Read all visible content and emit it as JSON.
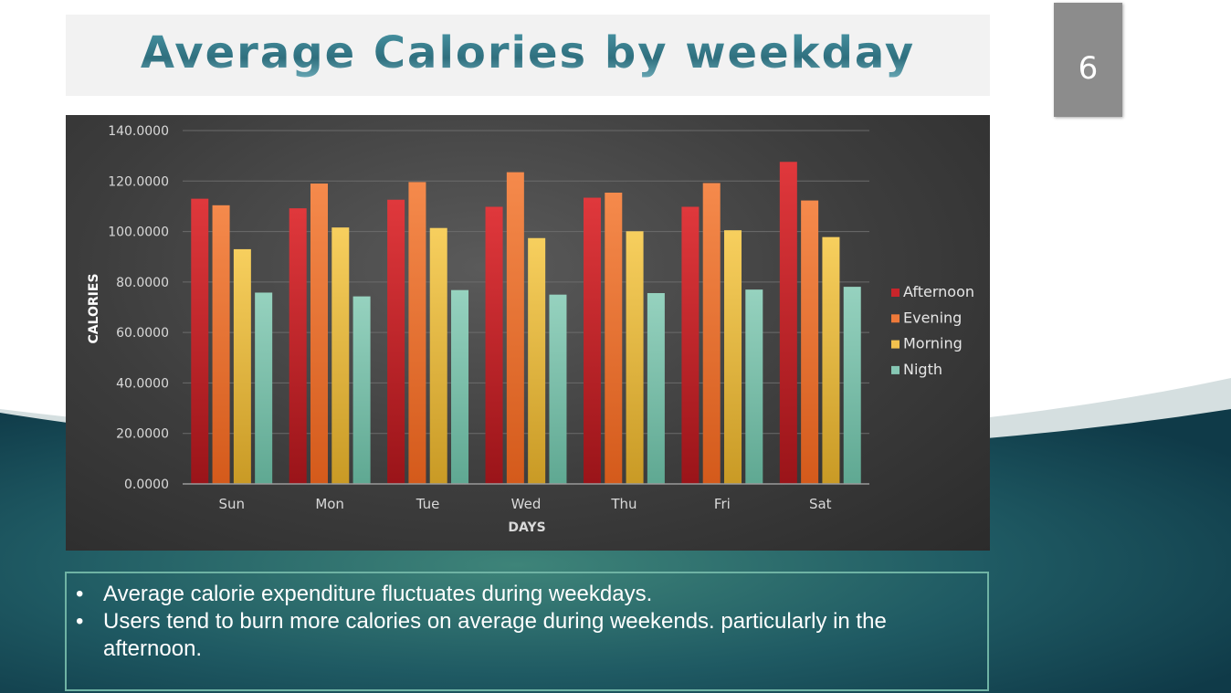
{
  "slide": {
    "title": "Average Calories by weekday",
    "page_number": "6"
  },
  "colors": {
    "title_gradient_top": "#4a97a6",
    "title_gradient_bottom": "#2f6f7e",
    "bottom_wave_dark": "#123f4c",
    "bottom_wave_light": "#d5dfe0",
    "page_tab": "#8c8c8c"
  },
  "notes": {
    "bullets": [
      "Average calorie expenditure fluctuates during weekdays.",
      "Users tend to burn more calories on average during weekends. particularly in the afternoon."
    ]
  },
  "chart_data": {
    "type": "bar",
    "title": "",
    "xlabel": "DAYS",
    "ylabel": "CALORIES",
    "categories": [
      "Sun",
      "Mon",
      "Tue",
      "Wed",
      "Thu",
      "Fri",
      "Sat"
    ],
    "ylim": [
      0,
      140
    ],
    "yticks": [
      0,
      20,
      40,
      60,
      80,
      100,
      120,
      140
    ],
    "ytick_labels": [
      "0.0000",
      "20.0000",
      "40.0000",
      "60.0000",
      "80.0000",
      "100.0000",
      "120.0000",
      "140.0000"
    ],
    "grid": true,
    "legend": "right",
    "series": [
      {
        "name": "Afternoon",
        "color": "#c8252b",
        "color_light": "#e0383c",
        "color_dark": "#9a1419",
        "values": [
          113.0,
          109.2,
          112.6,
          109.8,
          113.4,
          109.8,
          127.6
        ]
      },
      {
        "name": "Evening",
        "color": "#ee7a3a",
        "color_light": "#f58a4c",
        "color_dark": "#d45a1b",
        "values": [
          110.4,
          119.0,
          119.6,
          123.5,
          115.4,
          119.2,
          112.3
        ]
      },
      {
        "name": "Morning",
        "color": "#f2c14e",
        "color_light": "#f7cf5e",
        "color_dark": "#c99a25",
        "values": [
          93.0,
          101.6,
          101.4,
          97.4,
          100.1,
          100.5,
          97.8
        ]
      },
      {
        "name": "Nigth",
        "color": "#86c7b4",
        "color_light": "#96d2bf",
        "color_dark": "#5fa892",
        "values": [
          75.8,
          74.3,
          76.8,
          75.0,
          75.6,
          77.0,
          78.1
        ]
      }
    ]
  }
}
